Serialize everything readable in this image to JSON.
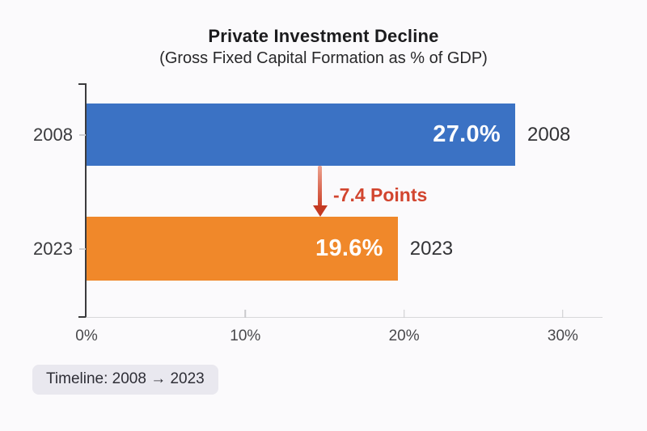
{
  "header": {
    "title": "Private Investment Decline",
    "subtitle": "(Gross Fixed Capital Formation as % of GDP)"
  },
  "chart_data": {
    "type": "bar",
    "orientation": "horizontal",
    "title": "Private Investment Decline",
    "subtitle": "(Gross Fixed Capital Formation as % of GDP)",
    "categories": [
      "2008",
      "2023"
    ],
    "values": [
      27.0,
      19.6
    ],
    "value_labels": [
      "27.0%",
      "19.6%"
    ],
    "bar_colors": [
      "#3b72c4",
      "#f0882a"
    ],
    "xlabel": "",
    "ylabel": "",
    "xlim": [
      0,
      32.5
    ],
    "x_tick_values": [
      0,
      10,
      20,
      30
    ],
    "x_tick_labels": [
      "0%",
      "10%",
      "20%",
      "30%"
    ],
    "grid": false,
    "legend": "none",
    "annotation": {
      "text": "-7.4 Points",
      "color": "#d2452f",
      "arrow_direction": "down",
      "from_category": "2008",
      "to_category": "2023"
    }
  },
  "footer": {
    "timeline_badge": "Timeline: 2008 → 2023"
  }
}
